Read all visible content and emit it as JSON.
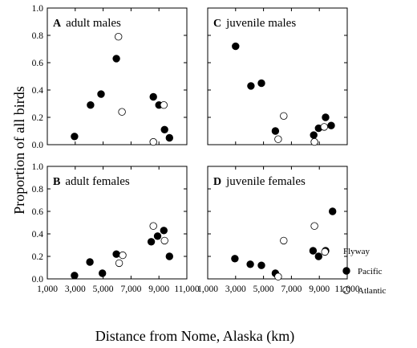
{
  "chart_data": {
    "type": "scatter",
    "ylabel": "Proportion of all birds",
    "xlabel": "Distance from Nome, Alaska (km)",
    "x_ticks": [
      "1,000",
      "3,000",
      "5,000",
      "7,000",
      "9,000",
      "11,000"
    ],
    "xlim": [
      1000,
      11000
    ],
    "y_ticks": [
      "0.0",
      "0.2",
      "0.4",
      "0.6",
      "0.8",
      "1.0"
    ],
    "ylim": [
      0,
      1.0
    ],
    "legend": {
      "title": "Flyway",
      "placement": "right",
      "entries": [
        {
          "name": "Pacific",
          "marker": "filled"
        },
        {
          "name": "Atlantic",
          "marker": "open"
        }
      ]
    },
    "panels": [
      {
        "letter": "A",
        "label": "adult  males",
        "position": "top-left",
        "series": [
          {
            "name": "Pacific",
            "points": [
              [
                2950,
                0.06
              ],
              [
                4100,
                0.29
              ],
              [
                4850,
                0.37
              ],
              [
                5950,
                0.63
              ],
              [
                8600,
                0.35
              ],
              [
                9000,
                0.29
              ],
              [
                9400,
                0.11
              ],
              [
                9750,
                0.05
              ]
            ]
          },
          {
            "name": "Atlantic",
            "points": [
              [
                6100,
                0.79
              ],
              [
                6350,
                0.24
              ],
              [
                8600,
                0.02
              ],
              [
                9350,
                0.29
              ]
            ]
          }
        ]
      },
      {
        "letter": "C",
        "label": "juvenile  males",
        "position": "top-right",
        "series": [
          {
            "name": "Pacific",
            "points": [
              [
                3000,
                0.72
              ],
              [
                4100,
                0.43
              ],
              [
                4850,
                0.45
              ],
              [
                5850,
                0.1
              ],
              [
                8600,
                0.07
              ],
              [
                8950,
                0.12
              ],
              [
                9450,
                0.2
              ],
              [
                9850,
                0.14
              ]
            ]
          },
          {
            "name": "Atlantic",
            "points": [
              [
                6050,
                0.04
              ],
              [
                6450,
                0.21
              ],
              [
                8650,
                0.02
              ],
              [
                9350,
                0.13
              ]
            ]
          }
        ]
      },
      {
        "letter": "B",
        "label": "adult  females",
        "position": "bottom-left",
        "series": [
          {
            "name": "Pacific",
            "points": [
              [
                2950,
                0.03
              ],
              [
                4050,
                0.15
              ],
              [
                4950,
                0.05
              ],
              [
                5950,
                0.22
              ],
              [
                8450,
                0.33
              ],
              [
                8900,
                0.38
              ],
              [
                9350,
                0.43
              ],
              [
                9750,
                0.2
              ]
            ]
          },
          {
            "name": "Atlantic",
            "points": [
              [
                6150,
                0.14
              ],
              [
                6400,
                0.21
              ],
              [
                8600,
                0.47
              ],
              [
                9400,
                0.34
              ]
            ]
          }
        ]
      },
      {
        "letter": "D",
        "label": "juvenile  females",
        "position": "bottom-right",
        "series": [
          {
            "name": "Pacific",
            "points": [
              [
                2950,
                0.18
              ],
              [
                4050,
                0.13
              ],
              [
                4850,
                0.12
              ],
              [
                5850,
                0.05
              ],
              [
                8550,
                0.25
              ],
              [
                8950,
                0.2
              ],
              [
                9450,
                0.25
              ],
              [
                9950,
                0.6
              ]
            ]
          },
          {
            "name": "Atlantic",
            "points": [
              [
                6050,
                0.02
              ],
              [
                6450,
                0.34
              ],
              [
                8650,
                0.47
              ],
              [
                9400,
                0.24
              ]
            ]
          }
        ]
      }
    ]
  }
}
